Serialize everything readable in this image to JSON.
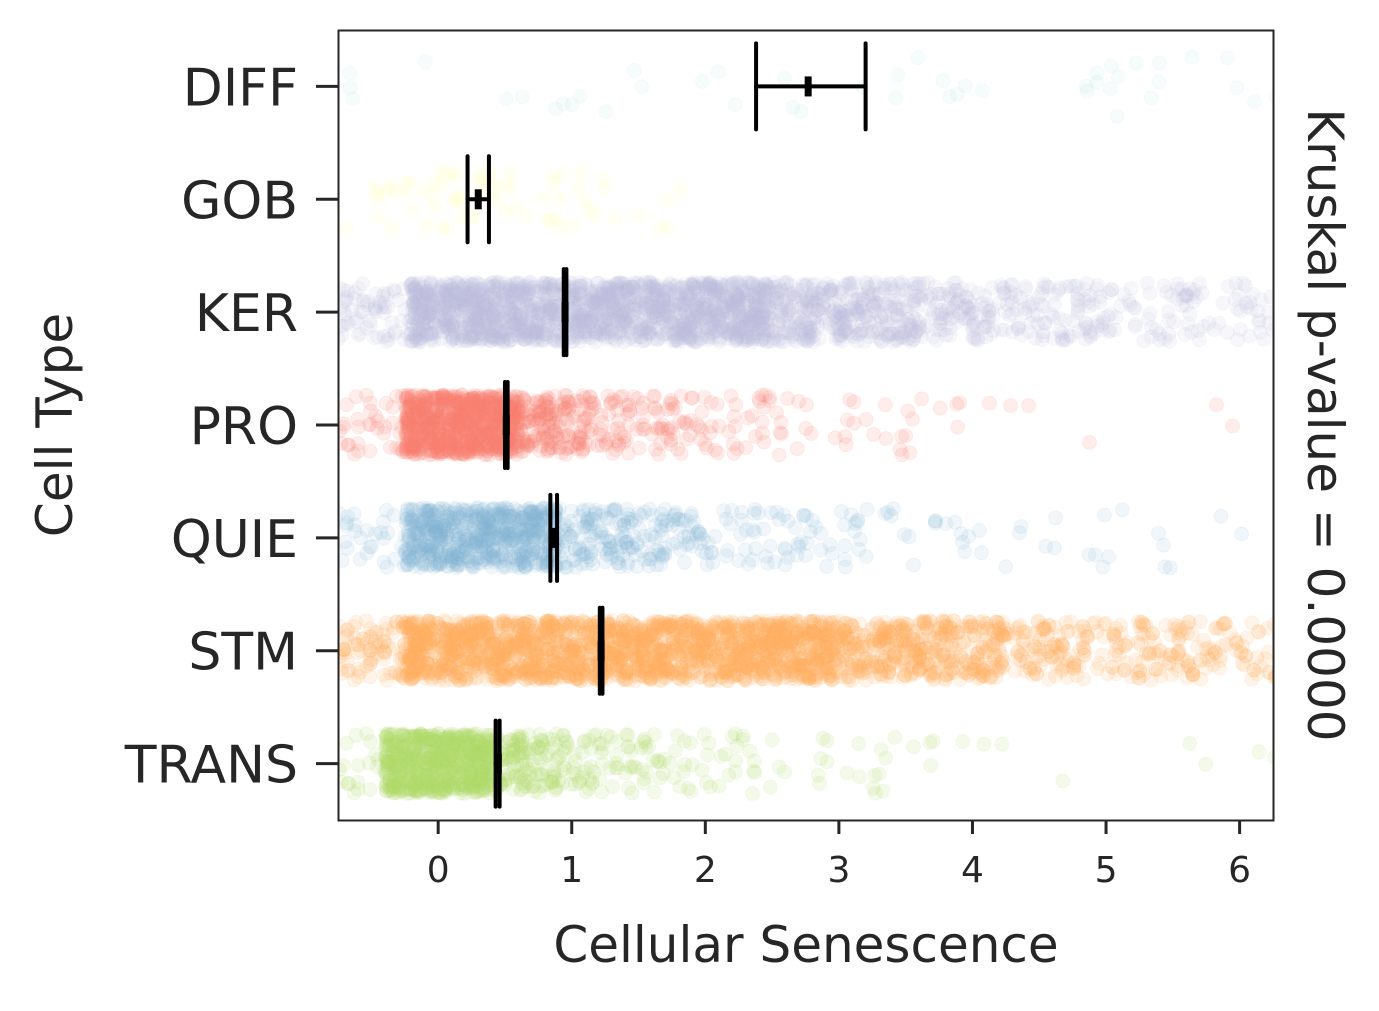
{
  "chart_data": {
    "type": "scatter",
    "subtype": "strip plot with mean and 95% CI",
    "xlabel": "Cellular Senescence",
    "ylabel": "Cell Type",
    "right_label": "Kruskal p-value = 0.0000",
    "xlim": [
      -0.75,
      6.25
    ],
    "xticks": [
      0,
      1,
      2,
      3,
      4,
      5,
      6
    ],
    "xtick_labels": [
      "0",
      "1",
      "2",
      "3",
      "4",
      "5",
      "6"
    ],
    "grid": false,
    "categories": [
      "DIFF",
      "GOB",
      "KER",
      "PRO",
      "QUIE",
      "STM",
      "TRANS"
    ],
    "series": [
      {
        "name": "DIFF",
        "color": "#8dd3c7",
        "mean": 2.77,
        "ci": [
          2.38,
          3.2
        ],
        "approx_n": 45,
        "core": [
          -0.7,
          6.3
        ],
        "tail": 0,
        "alpha": 0.08
      },
      {
        "name": "GOB",
        "color": "#ffffb3",
        "mean": 0.3,
        "ci": [
          0.22,
          0.38
        ],
        "approx_n": 70,
        "core": [
          -0.5,
          0.8
        ],
        "tail": 0.4,
        "alpha": 0.15
      },
      {
        "name": "KER",
        "color": "#bebada",
        "mean": 0.95,
        "ci": [
          0.94,
          0.96
        ],
        "approx_n": 2600,
        "core": [
          -0.2,
          2.5
        ],
        "tail": 1.8,
        "alpha": 0.12
      },
      {
        "name": "PRO",
        "color": "#fb8072",
        "mean": 0.51,
        "ci": [
          0.5,
          0.52
        ],
        "approx_n": 1200,
        "core": [
          -0.25,
          0.6
        ],
        "tail": 0.9,
        "alpha": 0.14
      },
      {
        "name": "QUIE",
        "color": "#80b1d3",
        "mean": 0.87,
        "ci": [
          0.84,
          0.89
        ],
        "approx_n": 1000,
        "core": [
          -0.25,
          0.9
        ],
        "tail": 1.3,
        "alpha": 0.12
      },
      {
        "name": "STM",
        "color": "#fdb462",
        "mean": 1.22,
        "ci": [
          1.21,
          1.23
        ],
        "approx_n": 3200,
        "core": [
          -0.25,
          3.0
        ],
        "tail": 2.0,
        "alpha": 0.14
      },
      {
        "name": "TRANS",
        "color": "#b3de69",
        "mean": 0.45,
        "ci": [
          0.43,
          0.46
        ],
        "approx_n": 1000,
        "core": [
          -0.4,
          0.4
        ],
        "tail": 0.9,
        "alpha": 0.14
      }
    ]
  }
}
